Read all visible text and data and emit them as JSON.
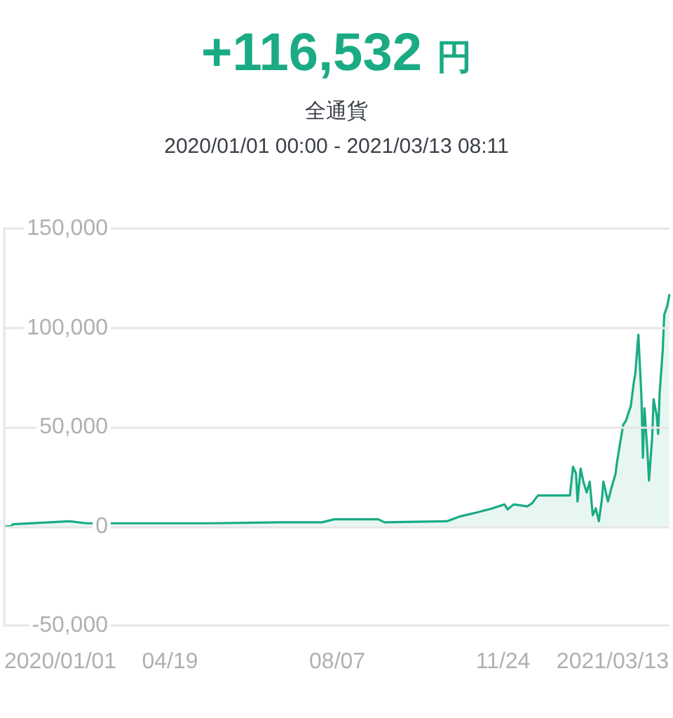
{
  "chart_data": {
    "type": "area",
    "title": "+116,532 円",
    "subtitle": "全通貨",
    "annotations": [
      "2020/01/01 00:00 - 2021/03/13 08:11"
    ],
    "x": [
      "2020-01-01",
      "2020-01-05",
      "2020-01-07",
      "2020-02-13",
      "2020-02-24",
      "2020-04-01",
      "2020-05-17",
      "2020-07-01",
      "2020-07-28",
      "2020-08-05",
      "2020-09-03",
      "2020-09-07",
      "2020-10-18",
      "2020-10-27",
      "2020-11-07",
      "2020-11-17",
      "2020-11-25",
      "2020-11-27",
      "2020-12-01",
      "2020-12-10",
      "2020-12-13",
      "2020-12-17",
      "2021-01-07",
      "2021-01-09",
      "2021-01-11",
      "2021-01-12",
      "2021-01-14",
      "2021-01-16",
      "2021-01-18",
      "2021-01-20",
      "2021-01-22",
      "2021-01-24",
      "2021-01-26",
      "2021-01-28",
      "2021-01-29",
      "2021-02-01",
      "2021-02-03",
      "2021-02-06",
      "2021-02-07",
      "2021-02-09",
      "2021-02-11",
      "2021-02-13",
      "2021-02-14",
      "2021-02-16",
      "2021-02-18",
      "2021-02-19",
      "2021-02-21",
      "2021-02-23",
      "2021-02-24",
      "2021-02-25",
      "2021-02-27",
      "2021-02-28",
      "2021-03-02",
      "2021-03-03",
      "2021-03-05",
      "2021-03-06",
      "2021-03-07",
      "2021-03-09",
      "2021-03-10",
      "2021-03-12",
      "2021-03-13T08:11"
    ],
    "values": [
      0,
      0,
      1000,
      2500,
      1500,
      1500,
      1500,
      2000,
      2000,
      3500,
      3500,
      2000,
      2500,
      5000,
      7000,
      9000,
      11000,
      8500,
      11000,
      10000,
      11500,
      15500,
      15500,
      30000,
      26500,
      12500,
      29000,
      22000,
      17000,
      22500,
      5500,
      9000,
      2500,
      13500,
      22500,
      12500,
      18500,
      26500,
      32500,
      42000,
      51000,
      53500,
      56000,
      60500,
      72500,
      77000,
      96500,
      65500,
      34500,
      59500,
      37000,
      23000,
      44000,
      64000,
      56000,
      46500,
      67500,
      88500,
      106500,
      111000,
      116500
    ],
    "color": "#1aab84",
    "xlim": [
      "2020-01-01",
      "2021-03-13T08:11"
    ],
    "xticks": [
      {
        "value": "2020-01-01",
        "label": "2020/01/01"
      },
      {
        "value": "2020-04-19",
        "label": "04/19"
      },
      {
        "value": "2020-08-07",
        "label": "08/07"
      },
      {
        "value": "2020-11-24",
        "label": "11/24"
      },
      {
        "value": "2021-03-13",
        "label": "2021/03/13"
      }
    ],
    "ylim": [
      -50000,
      150000
    ],
    "yticks": [
      {
        "value": -50000,
        "label": "-50,000"
      },
      {
        "value": 0,
        "label": "0"
      },
      {
        "value": 50000,
        "label": "50,000"
      },
      {
        "value": 100000,
        "label": "100,000"
      },
      {
        "value": 150000,
        "label": "150,000"
      }
    ],
    "grid": "y",
    "marker": "none",
    "line_style": "solid"
  }
}
